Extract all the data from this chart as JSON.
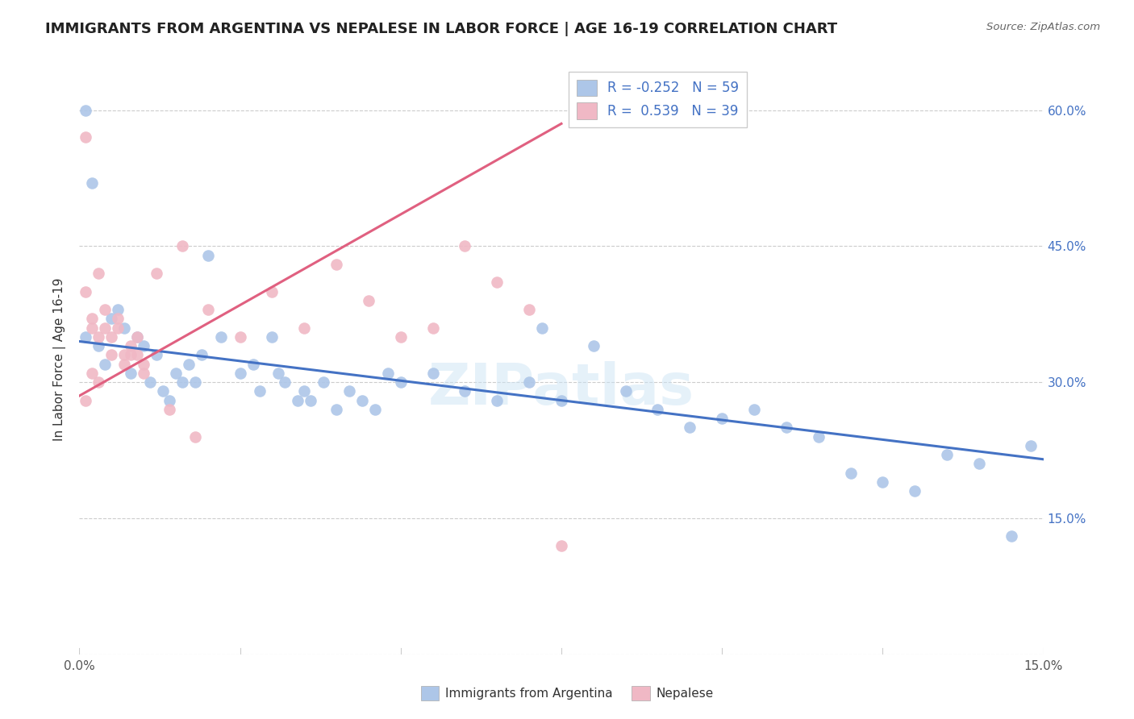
{
  "title": "IMMIGRANTS FROM ARGENTINA VS NEPALESE IN LABOR FORCE | AGE 16-19 CORRELATION CHART",
  "source": "Source: ZipAtlas.com",
  "ylabel": "In Labor Force | Age 16-19",
  "x_min": 0.0,
  "x_max": 0.15,
  "y_min": 0.0,
  "y_max": 0.65,
  "x_ticks": [
    0.0,
    0.025,
    0.05,
    0.075,
    0.1,
    0.125,
    0.15
  ],
  "x_tick_labels": [
    "0.0%",
    "",
    "",
    "",
    "",
    "",
    "15.0%"
  ],
  "y_ticks": [
    0.0,
    0.15,
    0.3,
    0.45,
    0.6
  ],
  "y_tick_labels_right": [
    "",
    "15.0%",
    "30.0%",
    "45.0%",
    "60.0%"
  ],
  "legend_r_blue": "-0.252",
  "legend_n_blue": "59",
  "legend_r_pink": "0.539",
  "legend_n_pink": "39",
  "blue_scatter_color": "#adc6e8",
  "pink_scatter_color": "#f0b8c5",
  "blue_line_color": "#4472c4",
  "pink_line_color": "#e06080",
  "watermark": "ZIPatlas",
  "argentina_x": [
    0.001,
    0.002,
    0.003,
    0.004,
    0.005,
    0.006,
    0.007,
    0.008,
    0.009,
    0.01,
    0.011,
    0.012,
    0.013,
    0.014,
    0.015,
    0.016,
    0.017,
    0.018,
    0.019,
    0.02,
    0.022,
    0.025,
    0.027,
    0.028,
    0.03,
    0.031,
    0.032,
    0.034,
    0.035,
    0.036,
    0.038,
    0.04,
    0.042,
    0.044,
    0.046,
    0.048,
    0.05,
    0.055,
    0.06,
    0.065,
    0.07,
    0.072,
    0.075,
    0.08,
    0.085,
    0.09,
    0.095,
    0.1,
    0.105,
    0.11,
    0.115,
    0.12,
    0.125,
    0.13,
    0.135,
    0.14,
    0.145,
    0.148,
    0.001
  ],
  "argentina_y": [
    0.35,
    0.52,
    0.34,
    0.32,
    0.37,
    0.38,
    0.36,
    0.31,
    0.35,
    0.34,
    0.3,
    0.33,
    0.29,
    0.28,
    0.31,
    0.3,
    0.32,
    0.3,
    0.33,
    0.44,
    0.35,
    0.31,
    0.32,
    0.29,
    0.35,
    0.31,
    0.3,
    0.28,
    0.29,
    0.28,
    0.3,
    0.27,
    0.29,
    0.28,
    0.27,
    0.31,
    0.3,
    0.31,
    0.29,
    0.28,
    0.3,
    0.36,
    0.28,
    0.34,
    0.29,
    0.27,
    0.25,
    0.26,
    0.27,
    0.25,
    0.24,
    0.2,
    0.19,
    0.18,
    0.22,
    0.21,
    0.13,
    0.23,
    0.6
  ],
  "nepalese_x": [
    0.001,
    0.001,
    0.002,
    0.002,
    0.003,
    0.003,
    0.004,
    0.004,
    0.005,
    0.005,
    0.006,
    0.006,
    0.007,
    0.007,
    0.008,
    0.008,
    0.009,
    0.009,
    0.01,
    0.01,
    0.012,
    0.014,
    0.016,
    0.018,
    0.02,
    0.025,
    0.03,
    0.035,
    0.04,
    0.045,
    0.05,
    0.055,
    0.06,
    0.065,
    0.07,
    0.075,
    0.001,
    0.002,
    0.003
  ],
  "nepalese_y": [
    0.57,
    0.4,
    0.37,
    0.36,
    0.35,
    0.42,
    0.38,
    0.36,
    0.35,
    0.33,
    0.37,
    0.36,
    0.33,
    0.32,
    0.34,
    0.33,
    0.35,
    0.33,
    0.32,
    0.31,
    0.42,
    0.27,
    0.45,
    0.24,
    0.38,
    0.35,
    0.4,
    0.36,
    0.43,
    0.39,
    0.35,
    0.36,
    0.45,
    0.41,
    0.38,
    0.12,
    0.28,
    0.31,
    0.3
  ],
  "blue_trend_x0": 0.0,
  "blue_trend_x1": 0.15,
  "blue_trend_y0": 0.345,
  "blue_trend_y1": 0.215,
  "pink_trend_x0": 0.0,
  "pink_trend_x1": 0.075,
  "pink_trend_y0": 0.285,
  "pink_trend_y1": 0.585
}
